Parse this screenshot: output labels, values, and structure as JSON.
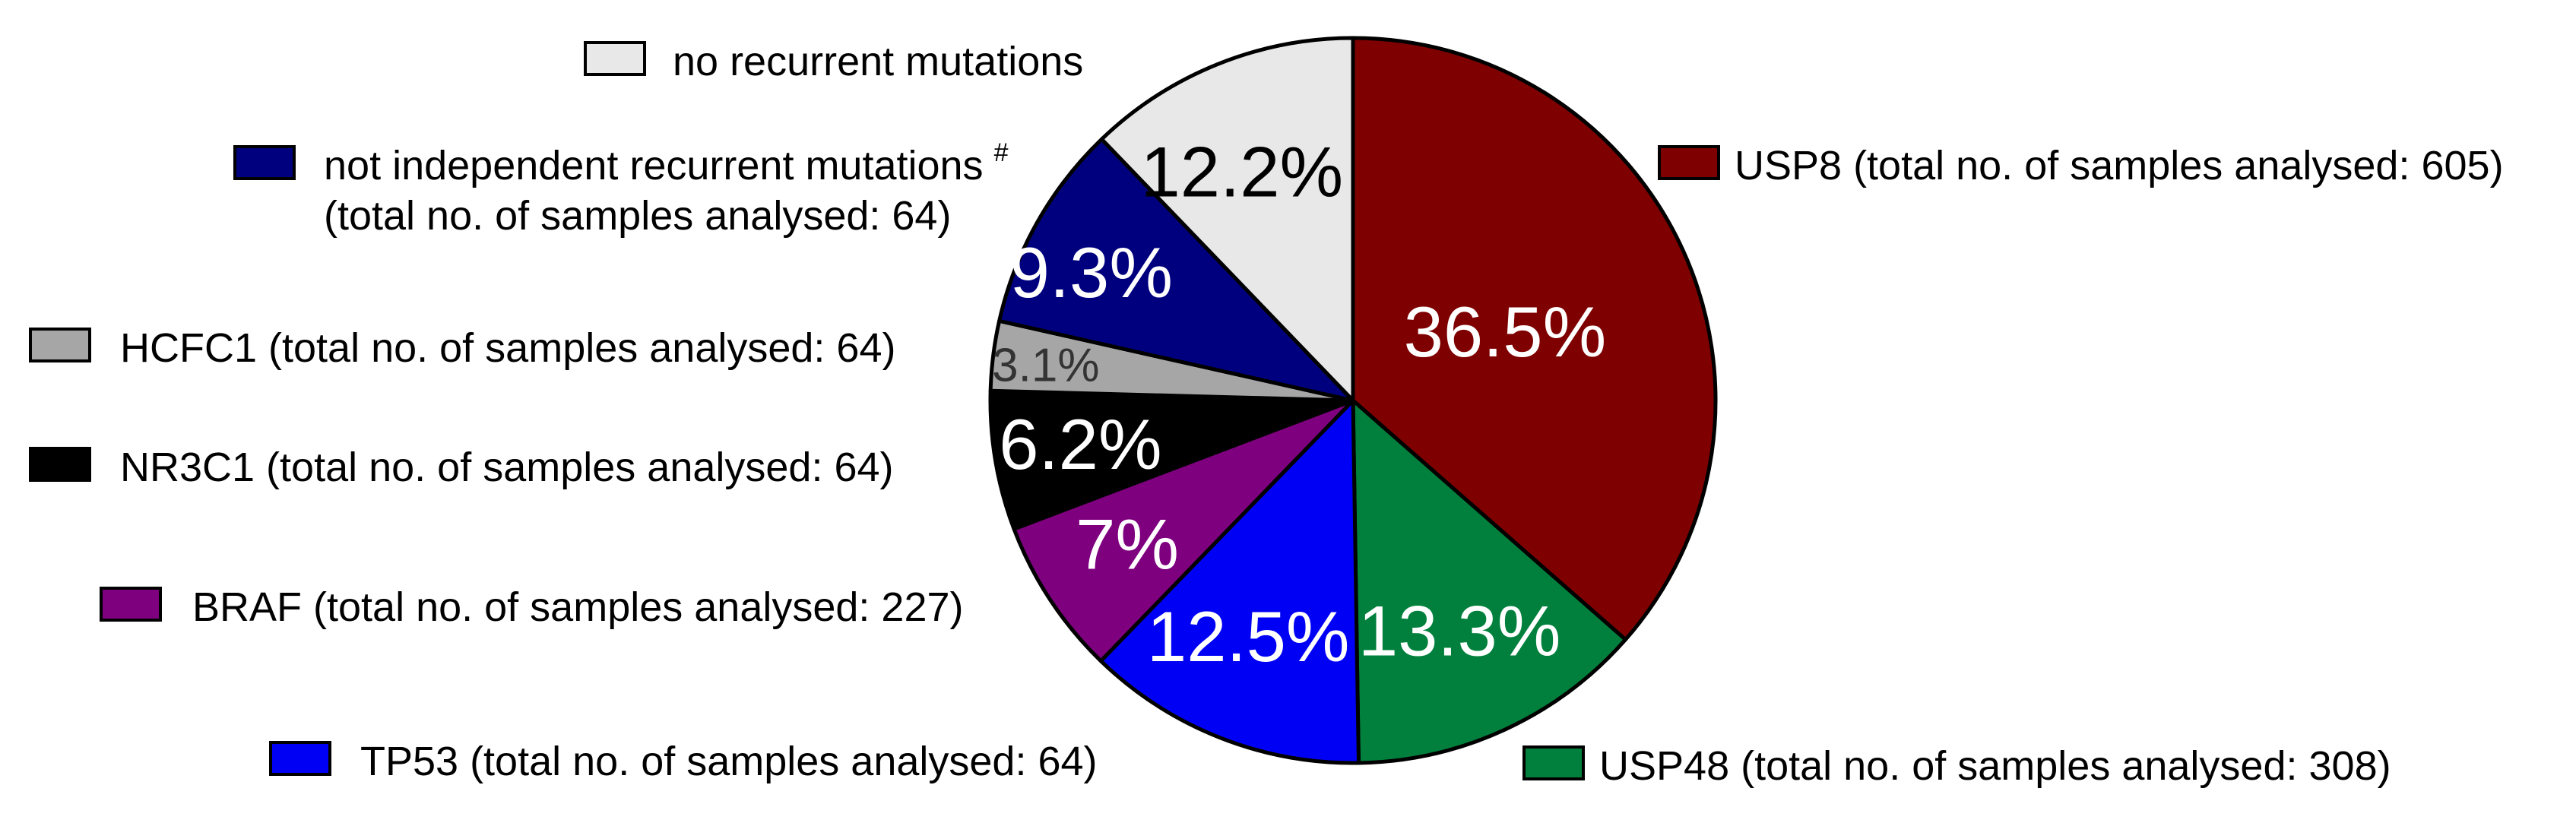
{
  "chart_data": {
    "type": "pie",
    "title": "",
    "start": "12 o'clock",
    "direction": "clockwise",
    "slices": [
      {
        "label": "USP8 (total no. of samples analysed: 605)",
        "value": 36.5,
        "value_label": "36.5%",
        "color": "#7f0000",
        "text_color": "#ffffff"
      },
      {
        "label": "USP48 (total no. of samples analysed: 308)",
        "value": 13.3,
        "value_label": "13.3%",
        "color": "#00803c",
        "text_color": "#ffffff"
      },
      {
        "label": "TP53  (total no. of samples analysed: 64)",
        "value": 12.5,
        "value_label": "12.5%",
        "color": "#0000f5",
        "text_color": "#ffffff"
      },
      {
        "label": "BRAF (total no. of samples analysed: 227)",
        "value": 7,
        "value_label": "7%",
        "color": "#7f007f",
        "text_color": "#ffffff"
      },
      {
        "label": "NR3C1 (total no. of samples analysed: 64)",
        "value": 6.2,
        "value_label": "6.2%",
        "color": "#000000",
        "text_color": "#ffffff"
      },
      {
        "label": "HCFC1  (total no. of samples analysed: 64)",
        "value": 3.1,
        "value_label": "3.1%",
        "color": "#a6a6a6",
        "text_color": "#333333"
      },
      {
        "label": "not independent recurrent mutations",
        "label_sup": "#",
        "label_line2": "(total no. of samples analysed: 64)",
        "value": 9.3,
        "value_label": "9.3%",
        "color": "#00007f",
        "text_color": "#ffffff"
      },
      {
        "label": "no recurrent mutations",
        "value": 12.2,
        "value_label": "12.2%",
        "color": "#e8e8e8",
        "text_color": "#000000"
      }
    ]
  }
}
